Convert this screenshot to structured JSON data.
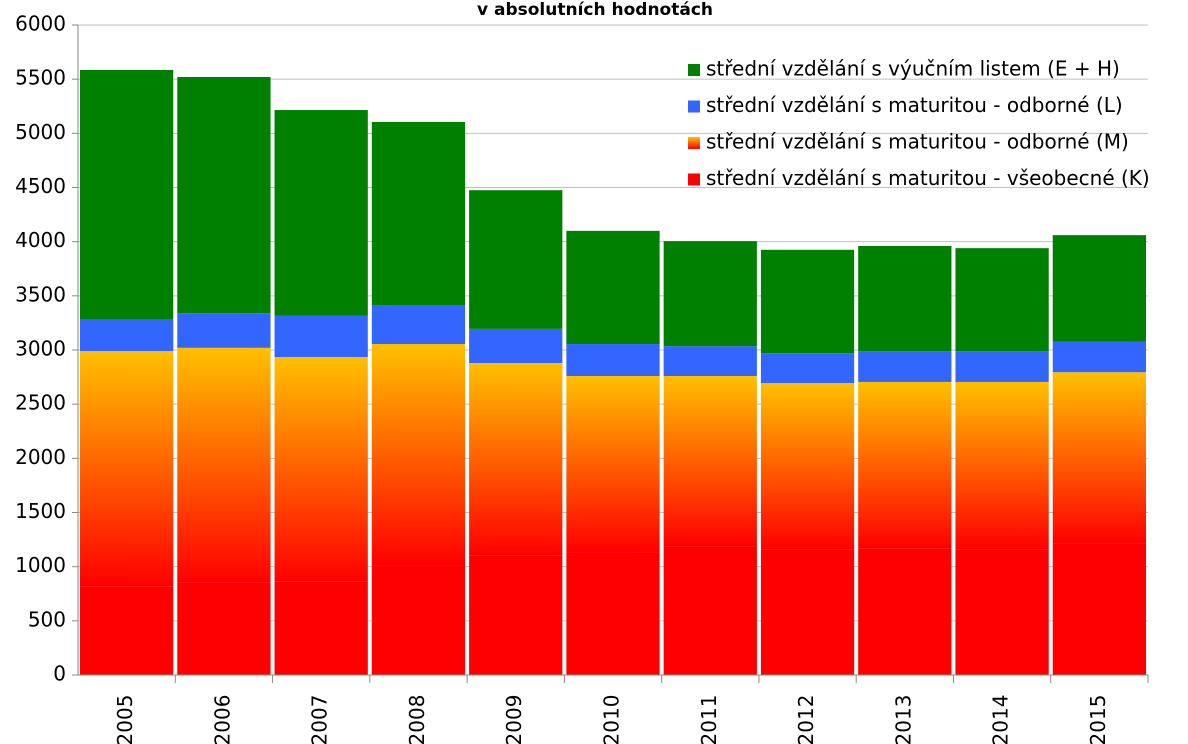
{
  "chart_data": {
    "type": "stacked_bar",
    "title": "v absolutních hodnotách",
    "categories": [
      "2005",
      "2006",
      "2007",
      "2008",
      "2009",
      "2010",
      "2011",
      "2012",
      "2013",
      "2014",
      "2015"
    ],
    "series": [
      {
        "name": "střední vzdělání s maturitou - všeobecné (K)",
        "color": "#ff0000",
        "values": [
          820,
          850,
          860,
          1015,
          1100,
          1135,
          1190,
          1155,
          1170,
          1155,
          1210
        ]
      },
      {
        "name": "střední vzdělání s maturitou - odborné (M)",
        "color": "#ffc000",
        "values": [
          2170,
          2170,
          2075,
          2040,
          1780,
          1625,
          1570,
          1540,
          1535,
          1550,
          1585
        ]
      },
      {
        "name": "střední vzdělání s maturitou - odborné (L)",
        "color": "#3366ff",
        "values": [
          290,
          320,
          380,
          360,
          315,
          295,
          275,
          275,
          285,
          285,
          280
        ]
      },
      {
        "name": "střední vzdělání s výučním listem (E + H)",
        "color": "#008000",
        "values": [
          2305,
          2180,
          1900,
          1690,
          1280,
          1045,
          970,
          955,
          970,
          950,
          985
        ]
      }
    ],
    "ylim": [
      0,
      6000
    ],
    "yticks": [
      0,
      500,
      1000,
      1500,
      2000,
      2500,
      3000,
      3500,
      4000,
      4500,
      5000,
      5500,
      6000
    ],
    "grid": true
  }
}
